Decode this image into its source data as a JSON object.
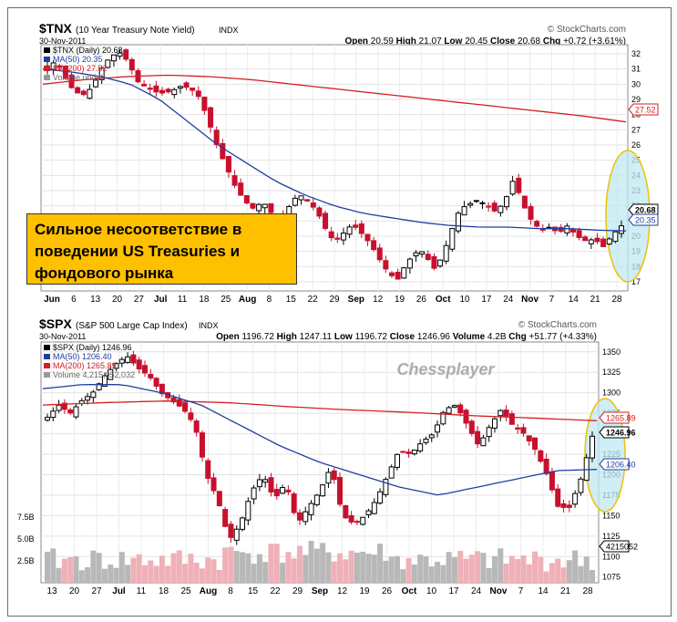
{
  "callout": {
    "text1": "Сильное несоответствие в",
    "text2": "поведении US Treasuries и",
    "text3": "фондового рынка"
  },
  "watermark": "Chessplayer",
  "colors": {
    "up": "#000000",
    "down": "#c8102e",
    "ma50": "#1f3f9e",
    "ma200": "#d42020",
    "highlight": "#bfe8f2",
    "oval": "#f0c000",
    "vol_up": "#b8b8b8",
    "vol_down": "#f0b0b8"
  },
  "chart_data": [
    {
      "type": "candlestick",
      "symbol": "$TNX",
      "title": "(10 Year Treasury Note Yield)",
      "exchange": "INDX",
      "date": "30-Nov-2011",
      "brand": "© StockCharts.com",
      "summary": {
        "open_label": "Open",
        "open": "20.59",
        "high_label": "High",
        "high": "21.07",
        "low_label": "Low",
        "low": "20.45",
        "close_label": "Close",
        "close": "20.68",
        "chg_label": "Chg",
        "chg": "+0.72 (+3.61%)"
      },
      "legend": [
        "$TNX (Daily) 20.68",
        "MA(50) 20.35",
        "MA(200) 27.52",
        "Volume undef"
      ],
      "y_ticks": [
        "32",
        "31",
        "30",
        "29",
        "28",
        "27",
        "26",
        "25",
        "24",
        "23",
        "22",
        "21",
        "20",
        "19",
        "18",
        "17"
      ],
      "ylim": [
        16.4,
        32.6
      ],
      "price_labels": {
        "last": "20.68",
        "ma50": "20.35",
        "ma200": "27.52"
      },
      "x_labels": [
        "Jun",
        "6",
        "13",
        "20",
        "27",
        "Jul",
        "11",
        "18",
        "25",
        "Aug",
        "8",
        "15",
        "22",
        "29",
        "Sep",
        "12",
        "19",
        "26",
        "Oct",
        "10",
        "17",
        "24",
        "Nov",
        "7",
        "14",
        "21",
        "28"
      ],
      "key_closes": [
        31.2,
        31.5,
        30.4,
        29.5,
        29.3,
        29.8,
        31.0,
        31.8,
        32.1,
        31.5,
        30.2,
        29.8,
        29.5,
        29.4,
        29.6,
        29.9,
        29.7,
        29.1,
        27.5,
        25.8,
        24.5,
        23.2,
        22.3,
        21.8,
        22.3,
        21.5,
        21.0,
        22.0,
        22.8,
        22.3,
        21.7,
        20.5,
        19.6,
        20.2,
        20.8,
        20.2,
        19.5,
        18.5,
        17.6,
        17.1,
        18.2,
        18.9,
        19.0,
        17.8,
        18.6,
        20.3,
        21.8,
        22.1,
        22.4,
        22.0,
        21.6,
        22.3,
        23.8,
        22.1,
        21.0,
        20.4,
        20.6,
        20.2,
        20.7,
        20.0,
        19.7,
        19.8,
        19.3,
        20.1,
        20.68
      ],
      "ma50": [
        31.0,
        30.8,
        30.5,
        30.0,
        29.0,
        27.5,
        26.0,
        24.8,
        23.6,
        22.7,
        22.0,
        21.5,
        21.2,
        20.9,
        20.7,
        20.6,
        20.6,
        20.5,
        20.5,
        20.4,
        20.35
      ],
      "ma200": [
        30.0,
        30.3,
        30.5,
        30.6,
        30.5,
        30.3,
        30.0,
        29.7,
        29.4,
        29.1,
        28.8,
        28.5,
        28.2,
        27.9,
        27.52
      ]
    },
    {
      "type": "candlestick",
      "symbol": "$SPX",
      "title": "(S&P 500 Large Cap Index)",
      "exchange": "INDX",
      "date": "30-Nov-2011",
      "brand": "© StockCharts.com",
      "summary": {
        "open_label": "Open",
        "open": "1196.72",
        "high_label": "High",
        "high": "1247.11",
        "low_label": "Low",
        "low": "1196.72",
        "close_label": "Close",
        "close": "1246.96",
        "vol_label": "Volume",
        "vol": "4.2B",
        "chg_label": "Chg",
        "chg": "+51.77 (+4.33%)"
      },
      "legend": [
        "$SPX (Daily) 1246.96",
        "MA(50) 1206.40",
        "MA(200) 1265.89",
        "Volume 4,215,052,032"
      ],
      "y_ticks": [
        "1350",
        "1325",
        "1300",
        "1275",
        "1250",
        "1225",
        "1200",
        "1175",
        "1150",
        "1125",
        "1100",
        "1075"
      ],
      "ylim": [
        1068,
        1362
      ],
      "vol_ticks": [
        "7.5B",
        "5.0B",
        "2.5B"
      ],
      "price_labels": {
        "ma200": "1265.89",
        "last": "1246.96",
        "ma50": "1206.40",
        "vol": "4215052"
      },
      "x_labels": [
        "13",
        "20",
        "27",
        "Jul",
        "11",
        "18",
        "25",
        "Aug",
        "8",
        "15",
        "22",
        "29",
        "Sep",
        "12",
        "19",
        "26",
        "Oct",
        "10",
        "17",
        "24",
        "Nov",
        "7",
        "14",
        "21",
        "28"
      ],
      "key_closes": [
        1270,
        1285,
        1275,
        1290,
        1300,
        1320,
        1335,
        1345,
        1330,
        1320,
        1300,
        1290,
        1280,
        1260,
        1200,
        1170,
        1120,
        1140,
        1180,
        1200,
        1170,
        1190,
        1140,
        1160,
        1180,
        1210,
        1150,
        1140,
        1150,
        1170,
        1200,
        1230,
        1225,
        1240,
        1250,
        1280,
        1285,
        1260,
        1235,
        1260,
        1280,
        1260,
        1250,
        1230,
        1200,
        1160,
        1160,
        1195,
        1246.96
      ],
      "ma50": [
        1305,
        1310,
        1310,
        1300,
        1285,
        1260,
        1235,
        1215,
        1200,
        1185,
        1175,
        1185,
        1195,
        1205,
        1206.4
      ],
      "ma200": [
        1285,
        1288,
        1290,
        1288,
        1283,
        1279,
        1276,
        1272,
        1269,
        1265.89
      ]
    }
  ]
}
